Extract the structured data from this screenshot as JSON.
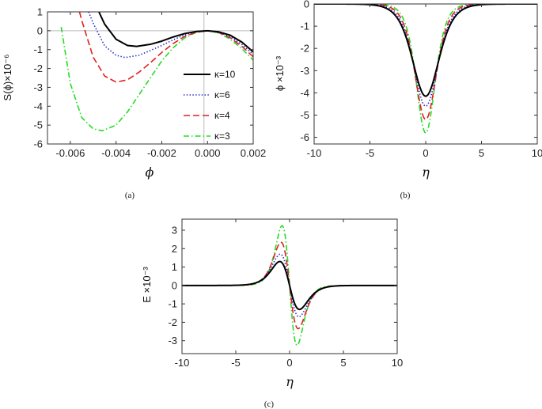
{
  "chart_data": [
    {
      "type": "line",
      "panel": "(a)",
      "caption": "(a)",
      "xlabel": "ϕ",
      "ylabel": "S(ϕ)×10⁻⁶",
      "xlim": [
        -0.007,
        0.002
      ],
      "ylim": [
        -6,
        1
      ],
      "xticks": [
        -0.006,
        -0.004,
        -0.002,
        0.0,
        0.002
      ],
      "xtick_labels": [
        "-0.006",
        "-0.004",
        "-0.002",
        "0.000",
        "0.002"
      ],
      "yticks": [
        -6,
        -5,
        -4,
        -3,
        -2,
        -1,
        0,
        1
      ],
      "ytick_labels": [
        "-6",
        "-5",
        "-4",
        "-3",
        "-2",
        "-1",
        "0",
        "1"
      ],
      "legend_position": "right",
      "series": [
        {
          "name": "κ=10",
          "legend": "κ=10",
          "color": "#000000",
          "style": "solid",
          "x": [
            -0.00475,
            -0.0045,
            -0.004,
            -0.0035,
            -0.0031,
            -0.0025,
            -0.002,
            -0.0015,
            -0.001,
            -0.0005,
            0.0,
            0.0005,
            0.001,
            0.0015,
            0.002
          ],
          "y": [
            1.0,
            0.35,
            -0.45,
            -0.78,
            -0.83,
            -0.72,
            -0.55,
            -0.33,
            -0.15,
            -0.04,
            0.0,
            -0.06,
            -0.24,
            -0.6,
            -1.12
          ]
        },
        {
          "name": "κ=6",
          "legend": "κ=6",
          "color": "#2222cc",
          "style": "dotted",
          "x": [
            -0.0052,
            -0.005,
            -0.0045,
            -0.004,
            -0.0036,
            -0.003,
            -0.0025,
            -0.002,
            -0.0015,
            -0.001,
            -0.0005,
            0.0,
            0.0005,
            0.001,
            0.0015,
            0.002
          ],
          "y": [
            1.0,
            0.4,
            -0.8,
            -1.3,
            -1.42,
            -1.3,
            -1.05,
            -0.78,
            -0.48,
            -0.22,
            -0.06,
            0.0,
            -0.08,
            -0.32,
            -0.72,
            -1.25
          ]
        },
        {
          "name": "κ=4",
          "legend": "κ=4",
          "color": "#e02020",
          "style": "dashed",
          "x": [
            -0.0056,
            -0.0055,
            -0.005,
            -0.0045,
            -0.004,
            -0.0035,
            -0.003,
            -0.0025,
            -0.002,
            -0.0015,
            -0.001,
            -0.0005,
            0.0,
            0.0005,
            0.001,
            0.0015,
            0.002
          ],
          "y": [
            1.0,
            0.55,
            -1.4,
            -2.4,
            -2.72,
            -2.6,
            -2.2,
            -1.7,
            -1.15,
            -0.68,
            -0.3,
            -0.08,
            0.0,
            -0.1,
            -0.38,
            -0.82,
            -1.38
          ]
        },
        {
          "name": "κ=3",
          "legend": "κ=3",
          "color": "#22dd22",
          "style": "dashdot",
          "x": [
            -0.0064,
            -0.006,
            -0.0055,
            -0.005,
            -0.0046,
            -0.004,
            -0.0035,
            -0.003,
            -0.0025,
            -0.002,
            -0.0015,
            -0.001,
            -0.0005,
            0.0,
            0.0005,
            0.001,
            0.0015,
            0.002
          ],
          "y": [
            0.2,
            -2.8,
            -4.6,
            -5.2,
            -5.3,
            -5.0,
            -4.3,
            -3.4,
            -2.5,
            -1.6,
            -0.9,
            -0.38,
            -0.09,
            0.0,
            -0.12,
            -0.45,
            -0.95,
            -1.55
          ]
        }
      ]
    },
    {
      "type": "line",
      "panel": "(b)",
      "caption": "(b)",
      "xlabel": "η",
      "ylabel": "ϕ ×10⁻³",
      "xlim": [
        -10,
        10
      ],
      "ylim": [
        -6.3,
        0
      ],
      "xticks": [
        -10,
        -5,
        0,
        5,
        10
      ],
      "xtick_labels": [
        "-10",
        "-5",
        "0",
        "5",
        "10"
      ],
      "yticks": [
        -6,
        -5,
        -4,
        -3,
        -2,
        -1,
        0
      ],
      "ytick_labels": [
        "-6",
        "-5",
        "-4",
        "-3",
        "-2",
        "-1",
        "0"
      ],
      "series": [
        {
          "name": "κ=10",
          "amplitude": -4.15,
          "width": 1.6,
          "color": "#000000",
          "style": "solid"
        },
        {
          "name": "κ=6",
          "amplitude": -4.6,
          "width": 1.45,
          "color": "#2222cc",
          "style": "dotted"
        },
        {
          "name": "κ=4",
          "amplitude": -5.2,
          "width": 1.3,
          "color": "#e02020",
          "style": "dashed"
        },
        {
          "name": "κ=3",
          "amplitude": -5.8,
          "width": 1.15,
          "color": "#22dd22",
          "style": "dashdot"
        }
      ]
    },
    {
      "type": "line",
      "panel": "(c)",
      "caption": "(c)",
      "xlabel": "η",
      "ylabel": "E ×10⁻³",
      "xlim": [
        -10,
        10
      ],
      "ylim": [
        -3.7,
        3.6
      ],
      "xticks": [
        -10,
        -5,
        0,
        5,
        10
      ],
      "xtick_labels": [
        "-10",
        "-5",
        "0",
        "5",
        "10"
      ],
      "yticks": [
        -3,
        -2,
        -1,
        0,
        1,
        2,
        3
      ],
      "ytick_labels": [
        "-3",
        "-2",
        "-1",
        "0",
        "1",
        "2",
        "3"
      ],
      "series": [
        {
          "name": "κ=10",
          "peak": 1.3,
          "color": "#000000",
          "style": "solid"
        },
        {
          "name": "κ=6",
          "peak": 1.7,
          "color": "#2222cc",
          "style": "dotted"
        },
        {
          "name": "κ=4",
          "peak": 2.35,
          "color": "#e02020",
          "style": "dashed"
        },
        {
          "name": "κ=3",
          "peak": 3.25,
          "color": "#22dd22",
          "style": "dashdot"
        }
      ]
    }
  ]
}
